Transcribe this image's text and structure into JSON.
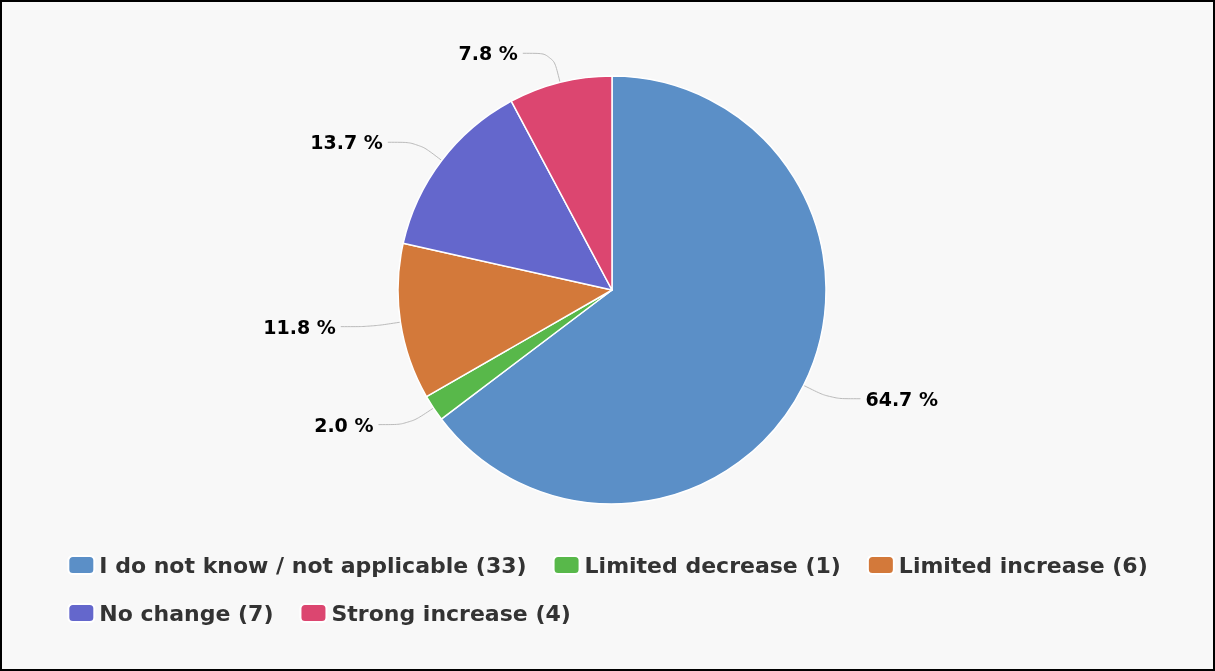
{
  "chart_data": {
    "type": "pie",
    "categories": [
      "I do not know / not applicable (33)",
      "Limited decrease (1)",
      "Limited increase (6)",
      "No change (7)",
      "Strong increase (4)"
    ],
    "values": [
      64.7,
      2.0,
      11.8,
      13.7,
      7.8
    ],
    "value_labels": [
      "64.7 %",
      "2.0 %",
      "11.8 %",
      "13.7 %",
      "7.8 %"
    ],
    "colors": [
      "#5b8fc7",
      "#58b84a",
      "#d3793a",
      "#6467cc",
      "#dc4670"
    ],
    "legend": "bottom"
  }
}
